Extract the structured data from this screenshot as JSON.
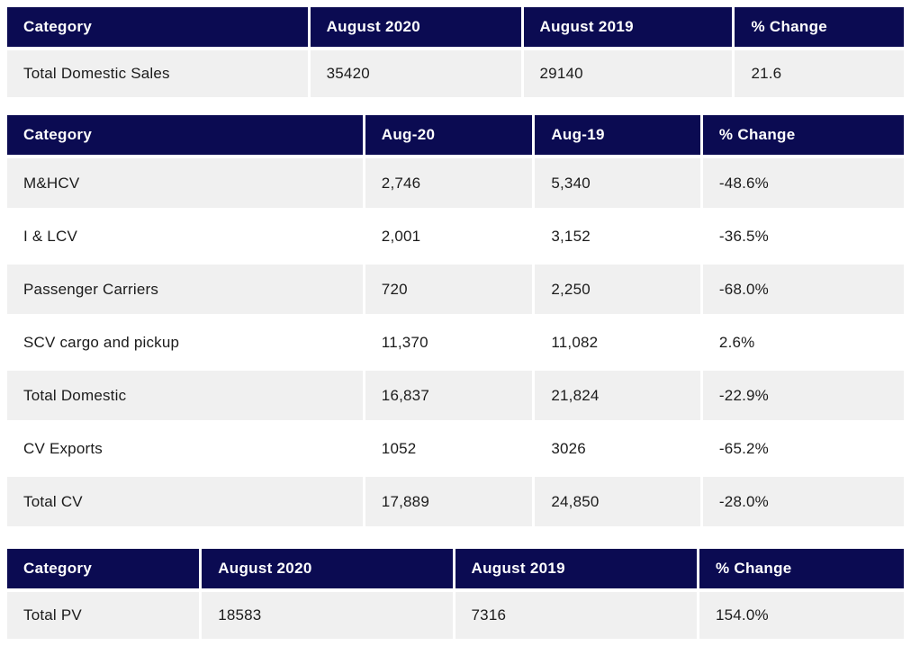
{
  "colors": {
    "header_bg": "#0b0b52",
    "header_text": "#ffffff",
    "row_alt_bg": "#f0f0f0",
    "row_bg": "#ffffff",
    "cell_text": "#1b1b1b"
  },
  "tables": [
    {
      "id": "summary",
      "name": "total-domestic-sales-table",
      "headers": [
        "Category",
        "August 2020",
        "August 2019",
        "% Change"
      ],
      "col_widths": [
        "33.8%",
        "23.7%",
        "23.5%",
        "19.0%"
      ],
      "rows": [
        [
          "Total Domestic Sales",
          "35420",
          "29140",
          "21.6"
        ]
      ]
    },
    {
      "id": "cv",
      "name": "commercial-vehicles-sales-table",
      "headers": [
        "Category",
        "Aug-20",
        "Aug-19",
        "% Change"
      ],
      "col_widths": [
        "40.0%",
        "18.8%",
        "18.6%",
        "22.6%"
      ],
      "rows": [
        [
          "M&HCV",
          "2,746",
          "5,340",
          "-48.6%"
        ],
        [
          "I & LCV",
          "2,001",
          "3,152",
          "-36.5%"
        ],
        [
          "Passenger Carriers",
          "720",
          "2,250",
          "-68.0%"
        ],
        [
          "SCV cargo and pickup",
          "11,370",
          "11,082",
          "2.6%"
        ],
        [
          "Total Domestic",
          "16,837",
          "21,824",
          "-22.9%"
        ],
        [
          "CV Exports",
          "1052",
          "3026",
          "-65.2%"
        ],
        [
          "Total CV",
          "17,889",
          "24,850",
          "-28.0%"
        ]
      ]
    },
    {
      "id": "pv",
      "name": "passenger-vehicles-sales-table",
      "headers": [
        "Category",
        "August 2020",
        "August 2019",
        "% Change"
      ],
      "col_widths": [
        "21.6%",
        "28.2%",
        "27.2%",
        "23.0%"
      ],
      "rows": [
        [
          "Total PV",
          "18583",
          "7316",
          "154.0%"
        ]
      ]
    }
  ]
}
